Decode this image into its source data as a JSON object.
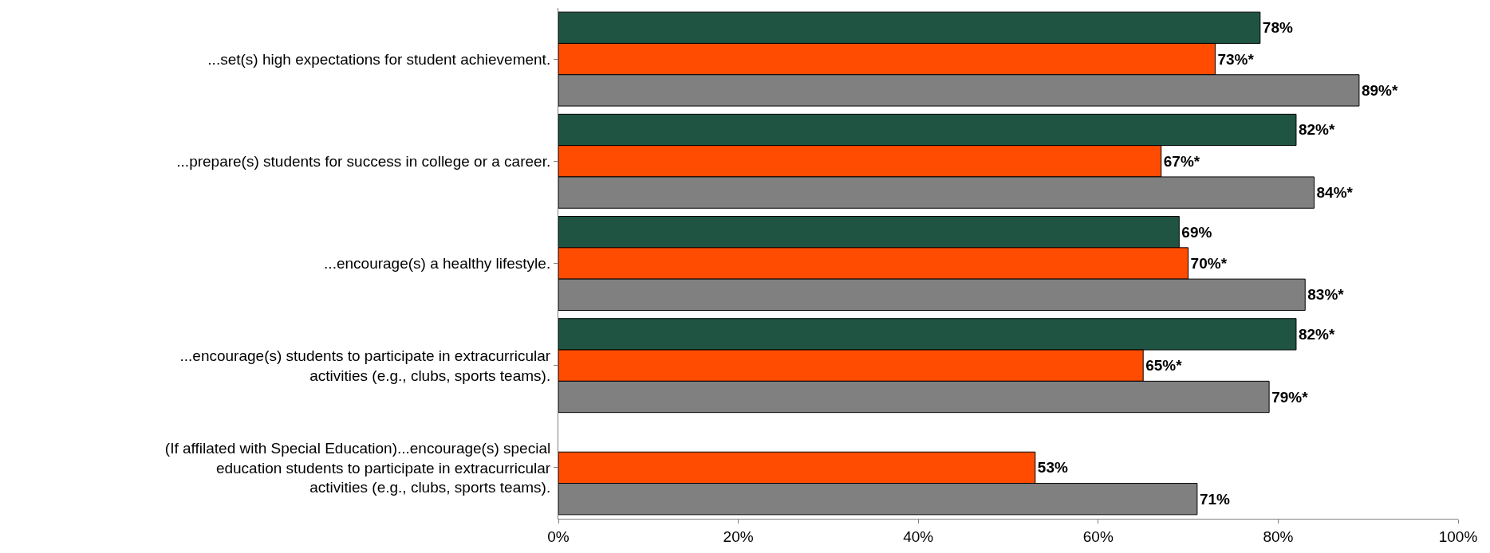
{
  "chart_data": {
    "type": "bar",
    "orientation": "horizontal",
    "categories": [
      "...set(s) high expectations for student achievement.",
      "...prepare(s) students for success in college or a career.",
      "...encourage(s) a healthy lifestyle.",
      "...encourage(s) students to participate in extracurricular activities (e.g., clubs, sports teams).",
      "(If affilated with Special Education)...encourage(s) special education students to participate in extracurricular activities (e.g., clubs, sports teams)."
    ],
    "series": [
      {
        "color": "#1f5443",
        "values": [
          78,
          82,
          69,
          82,
          null
        ],
        "value_labels": [
          "78%",
          "82%*",
          "69%",
          "82%*",
          null
        ]
      },
      {
        "color": "#ff4c00",
        "values": [
          73,
          67,
          70,
          65,
          53
        ],
        "value_labels": [
          "73%*",
          "67%*",
          "70%*",
          "65%*",
          "53%"
        ]
      },
      {
        "color": "#808080",
        "values": [
          89,
          84,
          83,
          79,
          71
        ],
        "value_labels": [
          "89%*",
          "84%*",
          "83%*",
          "79%*",
          "71%"
        ]
      }
    ],
    "xlim": [
      0,
      100
    ],
    "xticks": [
      {
        "value": 0,
        "label": "0%"
      },
      {
        "value": 20,
        "label": "20%"
      },
      {
        "value": 40,
        "label": "40%"
      },
      {
        "value": 60,
        "label": "60%"
      },
      {
        "value": 80,
        "label": "80%"
      },
      {
        "value": 100,
        "label": "100%"
      }
    ],
    "grid": false
  }
}
